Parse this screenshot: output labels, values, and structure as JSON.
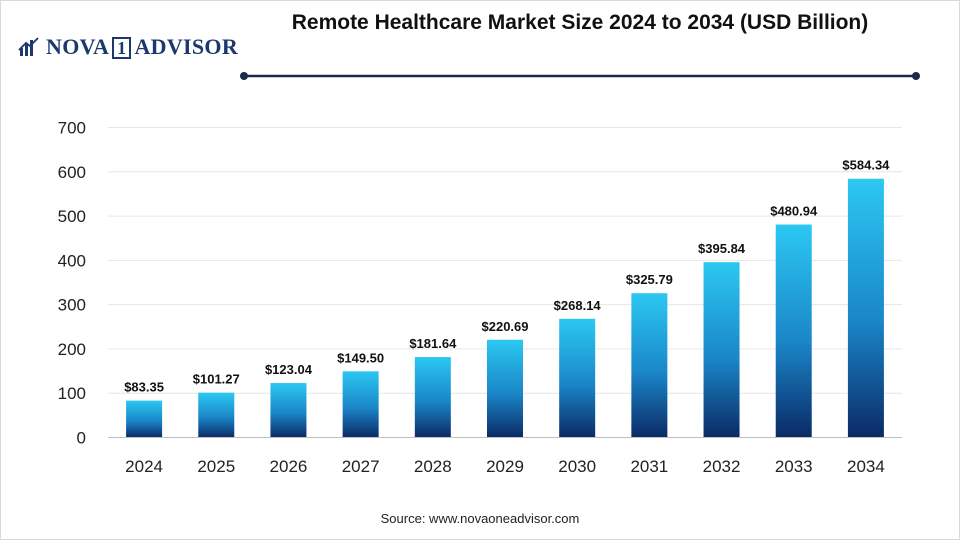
{
  "brand": {
    "name": "NOVA",
    "digit": "1",
    "name2": "ADVISOR"
  },
  "title": "Remote Healthcare Market Size 2024 to 2034 (USD Billion)",
  "source": "Source: www.novaoneadvisor.com",
  "colors": {
    "bar_top": "#2cc8f2",
    "bar_bottom": "#0b2a66",
    "rule": "#1b2a4a",
    "brand": "#1b3a6b"
  },
  "chart_data": {
    "type": "bar",
    "title": "Remote Healthcare Market Size 2024 to 2034 (USD Billion)",
    "xlabel": "",
    "ylabel": "",
    "categories": [
      "2024",
      "2025",
      "2026",
      "2027",
      "2028",
      "2029",
      "2030",
      "2031",
      "2032",
      "2033",
      "2034"
    ],
    "values": [
      83.35,
      101.27,
      123.04,
      149.5,
      181.64,
      220.69,
      268.14,
      325.79,
      395.84,
      480.94,
      584.34
    ],
    "value_labels": [
      "$83.35",
      "$101.27",
      "$123.04",
      "$149.50",
      "$181.64",
      "$220.69",
      "$268.14",
      "$325.79",
      "$395.84",
      "$480.94",
      "$584.34"
    ],
    "ylim": [
      0,
      700
    ],
    "yticks": [
      0,
      100,
      200,
      300,
      400,
      500,
      600,
      700
    ],
    "grid": true,
    "legend": "none"
  }
}
